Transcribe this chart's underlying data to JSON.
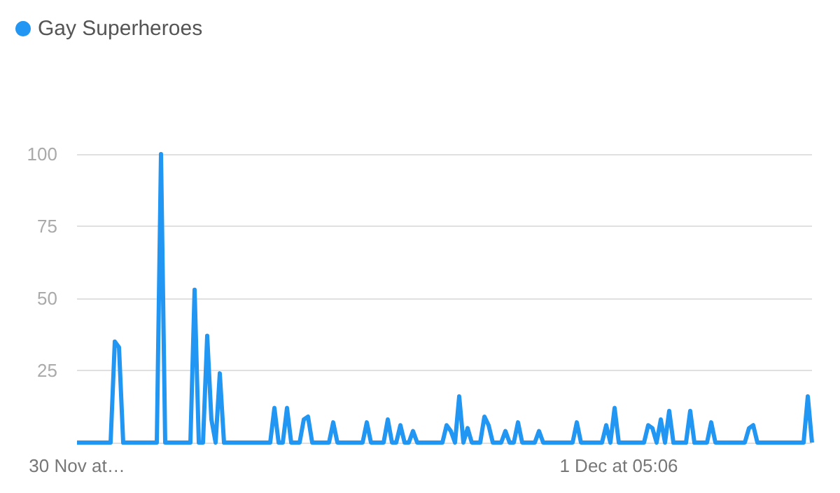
{
  "chart_data": {
    "type": "line",
    "categories": [
      "30 Nov at…",
      null,
      null,
      null,
      null,
      null,
      null,
      null,
      null,
      null,
      null,
      null,
      null,
      null,
      null,
      null,
      null,
      null,
      null,
      null,
      null,
      null,
      null,
      null,
      null,
      null,
      null,
      null,
      null,
      null,
      null,
      null,
      null,
      null,
      null,
      null,
      null,
      null,
      null,
      null,
      null,
      null,
      null,
      null,
      null,
      null,
      null,
      null,
      null,
      null,
      null,
      null,
      null,
      null,
      null,
      null,
      null,
      null,
      null,
      null,
      null,
      null,
      null,
      null,
      null,
      null,
      null,
      null,
      null,
      null,
      null,
      null,
      null,
      null,
      null,
      null,
      null,
      null,
      null,
      null,
      null,
      null,
      null,
      null,
      null,
      null,
      null,
      null,
      null,
      null,
      null,
      null,
      null,
      null,
      null,
      null,
      null,
      null,
      null,
      null,
      null,
      null,
      null,
      null,
      null,
      null,
      null,
      null,
      null,
      null,
      null,
      null,
      null,
      null,
      null,
      null,
      null,
      null,
      null,
      null,
      null,
      null,
      null,
      null,
      null,
      null,
      null,
      null,
      null,
      "1 Dec at 05:06",
      null,
      null,
      null,
      null,
      null,
      null,
      null,
      null,
      null,
      null,
      null,
      null,
      null,
      null,
      null,
      null,
      null,
      null,
      null,
      null,
      null,
      null,
      null,
      null,
      null,
      null,
      null,
      null,
      null,
      null,
      null,
      null,
      null,
      null,
      null,
      null,
      null,
      null,
      null,
      null,
      null,
      null,
      null,
      null,
      null,
      null
    ],
    "series": [
      {
        "name": "Gay Superheroes",
        "color": "#2196f3",
        "values": [
          0,
          0,
          0,
          0,
          0,
          0,
          0,
          0,
          0,
          35,
          33,
          0,
          0,
          0,
          0,
          0,
          0,
          0,
          0,
          0,
          100,
          0,
          0,
          0,
          0,
          0,
          0,
          0,
          53,
          0,
          0,
          37,
          8,
          0,
          24,
          0,
          0,
          0,
          0,
          0,
          0,
          0,
          0,
          0,
          0,
          0,
          0,
          12,
          0,
          0,
          12,
          0,
          0,
          0,
          8,
          9,
          0,
          0,
          0,
          0,
          0,
          7,
          0,
          0,
          0,
          0,
          0,
          0,
          0,
          7,
          0,
          0,
          0,
          0,
          8,
          0,
          0,
          6,
          0,
          0,
          4,
          0,
          0,
          0,
          0,
          0,
          0,
          0,
          6,
          4,
          0,
          16,
          0,
          5,
          0,
          0,
          0,
          9,
          6,
          0,
          0,
          0,
          4,
          0,
          0,
          7,
          0,
          0,
          0,
          0,
          4,
          0,
          0,
          0,
          0,
          0,
          0,
          0,
          0,
          7,
          0,
          0,
          0,
          0,
          0,
          0,
          6,
          0,
          12,
          0,
          0,
          0,
          0,
          0,
          0,
          0,
          6,
          5,
          0,
          8,
          0,
          11,
          0,
          0,
          0,
          0,
          11,
          0,
          0,
          0,
          0,
          7,
          0,
          0,
          0,
          0,
          0,
          0,
          0,
          0,
          5,
          6,
          0,
          0,
          0,
          0,
          0,
          0,
          0,
          0,
          0,
          0,
          0,
          0,
          16,
          0
        ]
      }
    ],
    "ylim": [
      0,
      100
    ],
    "yticks": [
      {
        "value": 0,
        "label": null
      },
      25,
      50,
      75,
      100
    ],
    "grid": "y",
    "legend": "top left",
    "marker": "none",
    "line_style": "solid"
  }
}
